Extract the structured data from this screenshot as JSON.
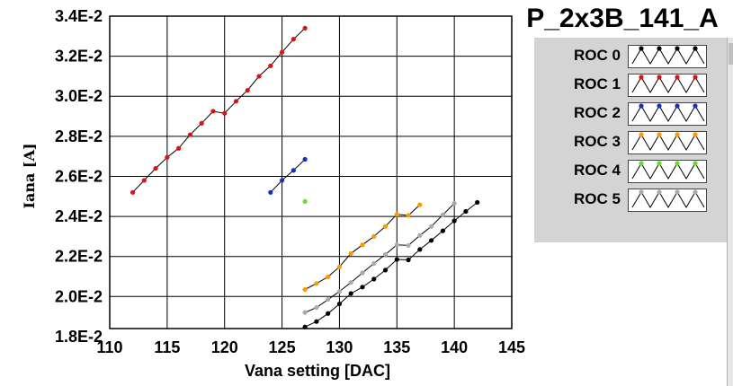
{
  "chart_data": {
    "type": "line",
    "title": "P_2x3B_141_A",
    "xlabel": "Vana setting [DAC]",
    "ylabel": "Iana [A]",
    "xlim": [
      110,
      145
    ],
    "ylim": [
      0.0184,
      0.034
    ],
    "xticks": [
      110,
      115,
      120,
      125,
      130,
      135,
      140,
      145
    ],
    "xtick_labels": [
      "110",
      "115",
      "120",
      "125",
      "130",
      "135",
      "140",
      "145"
    ],
    "yticks": [
      0.018,
      0.02,
      0.022,
      0.024,
      0.026,
      0.028,
      0.03,
      0.032,
      0.034
    ],
    "ytick_labels": [
      "1.8E-2",
      "2.0E-2",
      "2.2E-2",
      "2.4E-2",
      "2.6E-2",
      "2.8E-2",
      "3.0E-2",
      "3.2E-2",
      "3.4E-2"
    ],
    "grid": true,
    "legend_position": "right",
    "series": [
      {
        "name": "ROC 0",
        "color": "#000000",
        "x": [
          127,
          128,
          129,
          130,
          131,
          132,
          133,
          134,
          135,
          136,
          137,
          138,
          139,
          140,
          141,
          142
        ],
        "y": [
          0.01848,
          0.01875,
          0.01915,
          0.01963,
          0.02015,
          0.02047,
          0.02087,
          0.02132,
          0.02185,
          0.02183,
          0.02235,
          0.0228,
          0.02328,
          0.02378,
          0.02425,
          0.0247
        ]
      },
      {
        "name": "ROC 1",
        "color": "#dd1111",
        "x": [
          112,
          113,
          114,
          115,
          116,
          117,
          118,
          119,
          120,
          121,
          122,
          123,
          124,
          125,
          126,
          127
        ],
        "y": [
          0.0252,
          0.0258,
          0.0264,
          0.02695,
          0.0274,
          0.02808,
          0.02865,
          0.02925,
          0.02915,
          0.02975,
          0.0303,
          0.031,
          0.03152,
          0.0322,
          0.03285,
          0.0334
        ]
      },
      {
        "name": "ROC 2",
        "color": "#1133bb",
        "x": [
          124,
          125,
          126,
          127
        ],
        "y": [
          0.0252,
          0.0258,
          0.0263,
          0.02685
        ]
      },
      {
        "name": "ROC 3",
        "color": "#ff9900",
        "x": [
          127,
          128,
          129,
          130,
          131,
          132,
          133,
          134,
          135,
          136,
          137
        ],
        "y": [
          0.02035,
          0.02065,
          0.02098,
          0.02148,
          0.02215,
          0.02258,
          0.023,
          0.0235,
          0.0241,
          0.02405,
          0.02458
        ]
      },
      {
        "name": "ROC 4",
        "color": "#66dd22",
        "x": [
          127
        ],
        "y": [
          0.02475
        ]
      },
      {
        "name": "ROC 5",
        "color": "#aaaaaa",
        "x": [
          127,
          128,
          129,
          130,
          131,
          132,
          133,
          134,
          135,
          136,
          137,
          138,
          139,
          140
        ],
        "y": [
          0.0192,
          0.01945,
          0.01985,
          0.02025,
          0.0207,
          0.02118,
          0.02165,
          0.0221,
          0.02258,
          0.02255,
          0.02305,
          0.0235,
          0.02408,
          0.02465
        ]
      }
    ]
  }
}
